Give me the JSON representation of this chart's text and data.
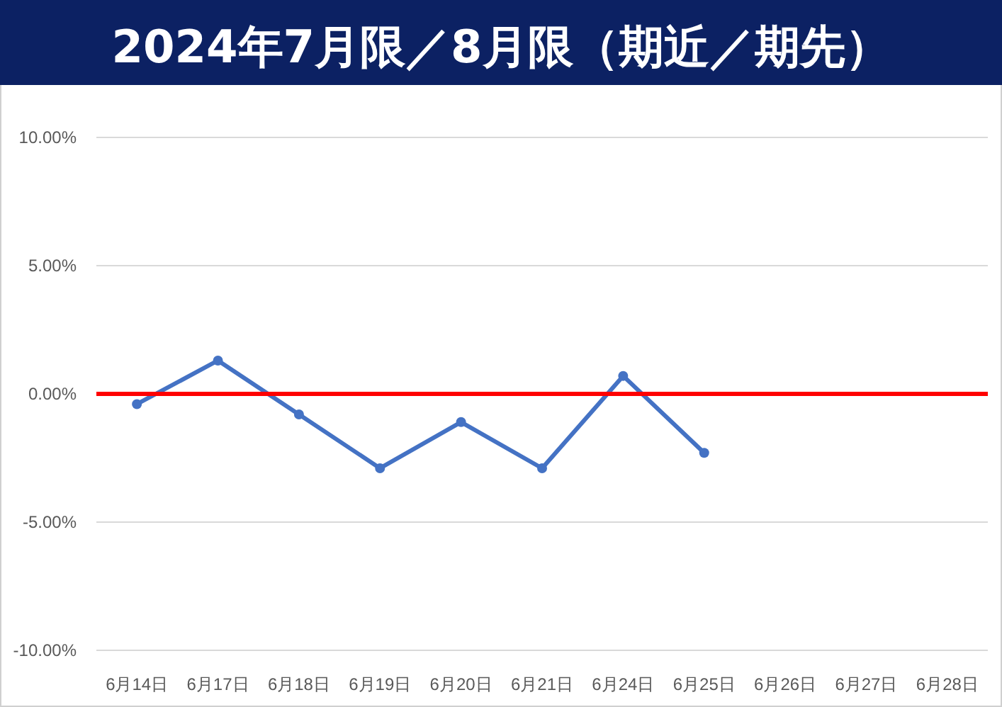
{
  "chart_data": {
    "type": "line",
    "title": "2024年7月限／8月限（期近／期先）",
    "categories": [
      "6月14日",
      "6月17日",
      "6月18日",
      "6月19日",
      "6月20日",
      "6月21日",
      "6月24日",
      "6月25日",
      "6月26日",
      "6月27日",
      "6月28日"
    ],
    "series": [
      {
        "color": "#4472c4",
        "values": [
          -0.4,
          1.3,
          -0.8,
          -2.9,
          -1.1,
          -2.9,
          0.7,
          -2.3,
          null,
          null,
          null
        ]
      }
    ],
    "ylim": [
      -10,
      10
    ],
    "yticks": [
      {
        "value": -10,
        "label": "-10.00%"
      },
      {
        "value": -5,
        "label": "-5.00%"
      },
      {
        "value": 0,
        "label": "0.00%"
      },
      {
        "value": 5,
        "label": "5.00%"
      },
      {
        "value": 10,
        "label": "10.00%"
      }
    ],
    "ref_lines": [
      {
        "axis": "y",
        "value": 0,
        "color": "#ff0000"
      }
    ],
    "grid": "y",
    "marker": "circle"
  }
}
